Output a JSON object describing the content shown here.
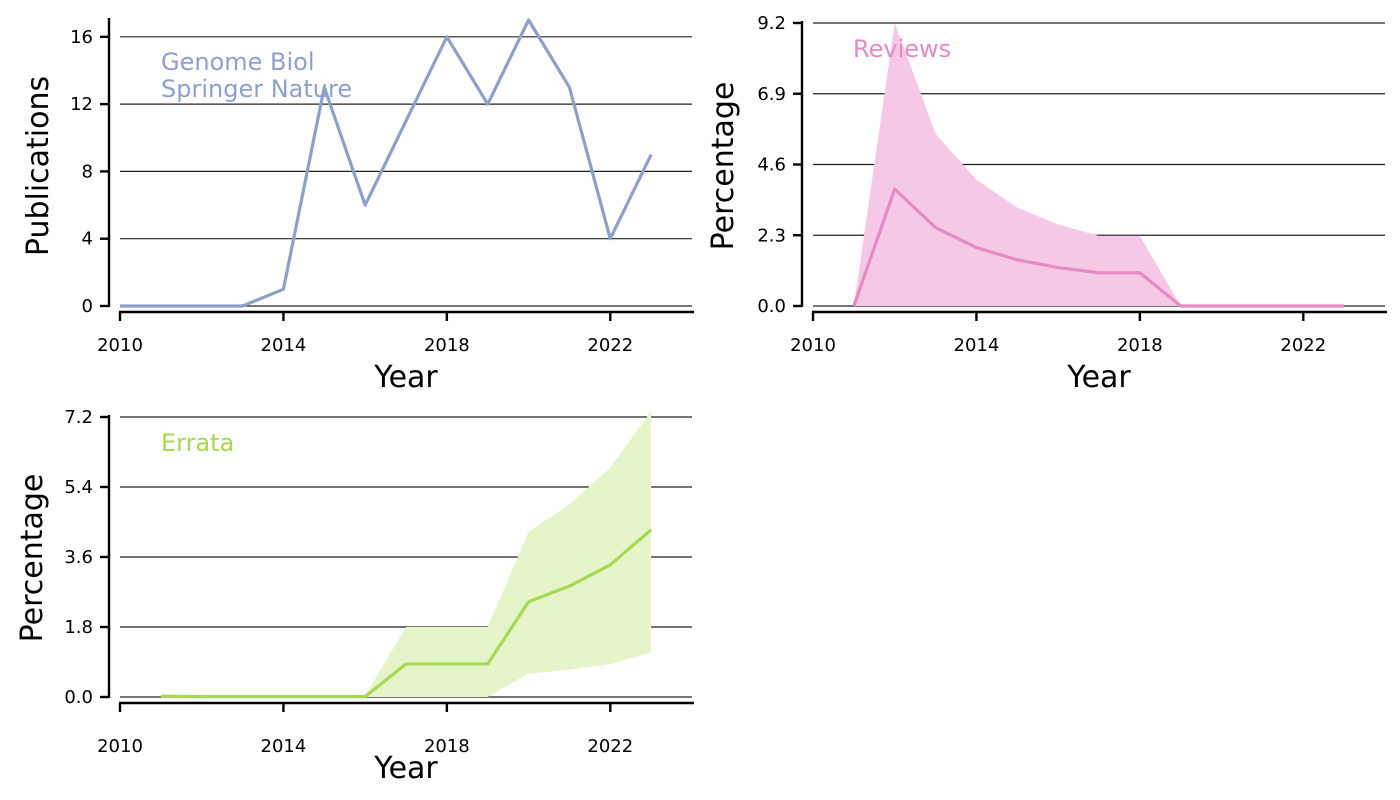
{
  "chart_data": [
    {
      "type": "line",
      "xlabel": "Year",
      "ylabel": "Publications",
      "annotation": [
        "Genome Biol",
        "Springer Nature"
      ],
      "color": "#8da0cb",
      "xlim": [
        2010,
        2024
      ],
      "ylim": [
        0,
        17
      ],
      "xticks": [
        2010,
        2014,
        2018,
        2022
      ],
      "yticks": [
        0,
        4,
        8,
        12,
        16
      ],
      "ytick_labels": [
        "0",
        "4",
        "8",
        "12",
        "16"
      ],
      "grid": "horizontal",
      "series": [
        {
          "x": [
            2010,
            2011,
            2012,
            2013,
            2014,
            2015,
            2016,
            2017,
            2018,
            2019,
            2020,
            2021,
            2022,
            2023
          ],
          "values": [
            0,
            0,
            0,
            0,
            1,
            13,
            6,
            11,
            16,
            12,
            17,
            13,
            4,
            9
          ]
        }
      ]
    },
    {
      "type": "area",
      "xlabel": "Year",
      "ylabel": "Percentage",
      "annotation": [
        "Reviews"
      ],
      "color": "#e78ac3",
      "fill_color": "#f5c9e5",
      "xlim": [
        2010,
        2024
      ],
      "ylim": [
        0,
        9.2
      ],
      "xticks": [
        2010,
        2014,
        2018,
        2022
      ],
      "yticks": [
        0,
        2.3,
        4.6,
        6.9,
        9.2
      ],
      "ytick_labels": [
        "0.0",
        "2.3",
        "4.6",
        "6.9",
        "9.2"
      ],
      "grid": "horizontal",
      "series": [
        {
          "x": [
            2011,
            2012,
            2013,
            2014,
            2015,
            2016,
            2017,
            2018,
            2019,
            2020,
            2021,
            2022,
            2023
          ],
          "values": [
            0,
            3.8,
            2.55,
            1.9,
            1.5,
            1.25,
            1.08,
            1.08,
            0,
            0,
            0,
            0,
            0
          ],
          "lower": [
            0,
            0,
            0,
            0,
            0,
            0,
            0,
            0,
            0,
            0,
            0,
            0,
            0
          ],
          "upper": [
            0,
            9.2,
            5.6,
            4.1,
            3.2,
            2.65,
            2.28,
            2.28,
            0,
            0,
            0,
            0,
            0
          ]
        }
      ]
    },
    {
      "type": "area",
      "xlabel": "Year",
      "ylabel": "Percentage",
      "annotation": [
        "Errata"
      ],
      "color": "#a6d854",
      "fill_color": "#e5f5c9",
      "xlim": [
        2010,
        2024
      ],
      "ylim": [
        0,
        7.2
      ],
      "xticks": [
        2010,
        2014,
        2018,
        2022
      ],
      "yticks": [
        0,
        1.8,
        3.6,
        5.4,
        7.2
      ],
      "ytick_labels": [
        "0.0",
        "1.8",
        "3.6",
        "5.4",
        "7.2"
      ],
      "grid": "horizontal",
      "series": [
        {
          "x": [
            2011,
            2012,
            2013,
            2014,
            2015,
            2016,
            2017,
            2018,
            2019,
            2020,
            2021,
            2022,
            2023
          ],
          "values": [
            0.02,
            0.01,
            0.01,
            0.01,
            0.01,
            0.01,
            0.85,
            0.85,
            0.85,
            2.45,
            2.85,
            3.4,
            4.3
          ],
          "lower": [
            0,
            0,
            0,
            0,
            0,
            0,
            0,
            0,
            0,
            0.6,
            0.7,
            0.85,
            1.15
          ],
          "upper": [
            0.05,
            0.04,
            0.04,
            0.04,
            0.04,
            0.04,
            1.8,
            1.8,
            1.8,
            4.25,
            4.95,
            5.9,
            7.35
          ]
        }
      ]
    }
  ]
}
